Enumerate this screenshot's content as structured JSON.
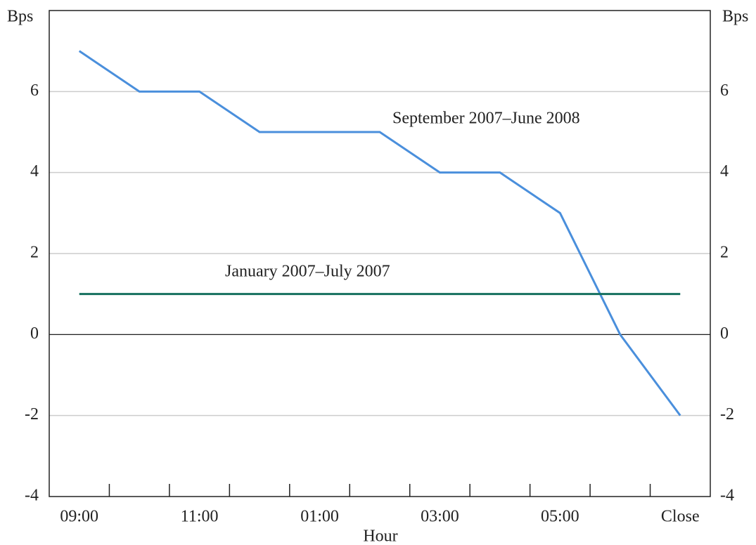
{
  "chart_data": {
    "type": "line",
    "y_label": "Bps",
    "x_label": "Hour",
    "categories": [
      "09:00",
      null,
      "11:00",
      null,
      "01:00",
      null,
      "03:00",
      null,
      "05:00",
      null,
      "Close"
    ],
    "series": [
      {
        "name": "September 2007–June 2008",
        "color": "#4a8fdc",
        "values": [
          7,
          6,
          6,
          5,
          5,
          5,
          4,
          4,
          3,
          0,
          -2
        ]
      },
      {
        "name": "January 2007–July 2007",
        "color": "#15705e",
        "values": [
          1,
          1,
          1,
          1,
          1,
          1,
          1,
          1,
          1,
          1,
          1
        ]
      }
    ],
    "ylim": [
      -4,
      8
    ],
    "yticks": [
      -4,
      -2,
      0,
      2,
      4,
      6
    ],
    "grid": true
  }
}
